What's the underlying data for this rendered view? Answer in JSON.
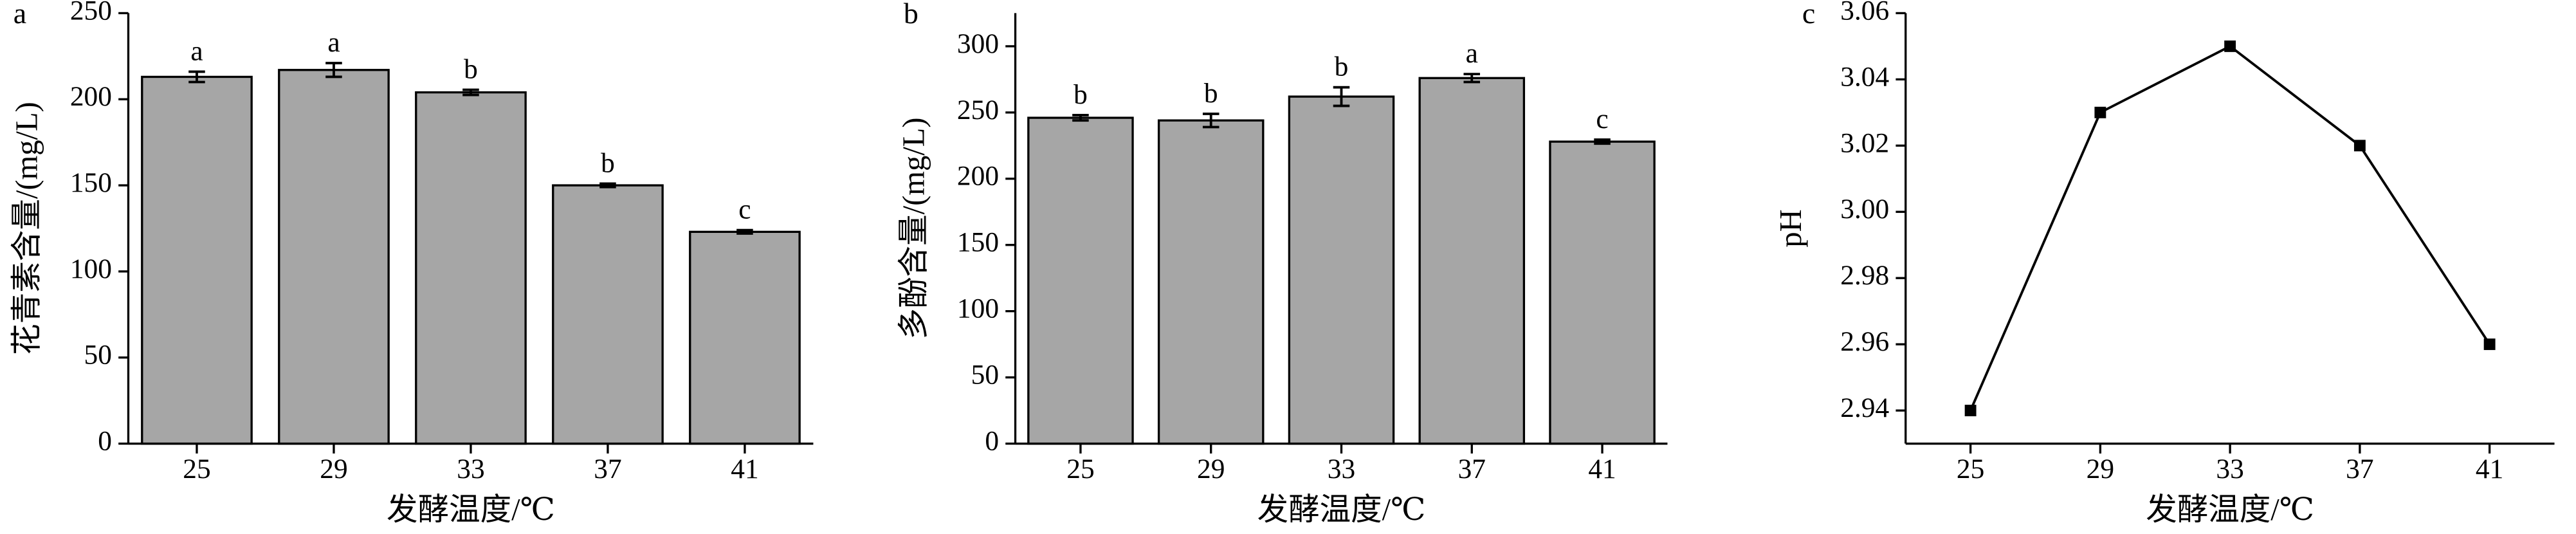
{
  "chart_data": [
    {
      "type": "bar",
      "panel": "a",
      "xlabel": "发酵温度/℃",
      "ylabel": "花青素含量/(mg/L)",
      "categories": [
        "25",
        "29",
        "33",
        "37",
        "41"
      ],
      "values": [
        213,
        217,
        204,
        150,
        123
      ],
      "errors": [
        3,
        4,
        1.5,
        1,
        1
      ],
      "significance": [
        "a",
        "a",
        "b",
        "b",
        "c"
      ],
      "color": "#a6a6a6",
      "ylim": [
        0,
        250
      ],
      "yticks": [
        0,
        50,
        100,
        150,
        200,
        250
      ]
    },
    {
      "type": "bar",
      "panel": "b",
      "xlabel": "发酵温度/℃",
      "ylabel": "多酚含量/(mg/L)",
      "categories": [
        "25",
        "29",
        "33",
        "37",
        "41"
      ],
      "values": [
        246,
        244,
        262,
        276,
        228
      ],
      "errors": [
        2,
        5,
        7,
        3,
        1.5
      ],
      "significance": [
        "b",
        "b",
        "b",
        "a",
        "c"
      ],
      "color": "#a6a6a6",
      "ylim": [
        0,
        325
      ],
      "yticks": [
        0,
        50,
        100,
        150,
        200,
        250,
        300
      ]
    },
    {
      "type": "line",
      "panel": "c",
      "xlabel": "发酵温度/℃",
      "ylabel": "pH",
      "categories": [
        "25",
        "29",
        "33",
        "37",
        "41"
      ],
      "values": [
        2.94,
        3.03,
        3.05,
        3.02,
        2.96
      ],
      "color": "#000000",
      "ylim": [
        2.93,
        3.06
      ],
      "yticks": [
        2.94,
        2.96,
        2.98,
        {
          "value": 3,
          "label": "3.00"
        },
        3.02,
        3.04,
        3.06
      ]
    }
  ]
}
